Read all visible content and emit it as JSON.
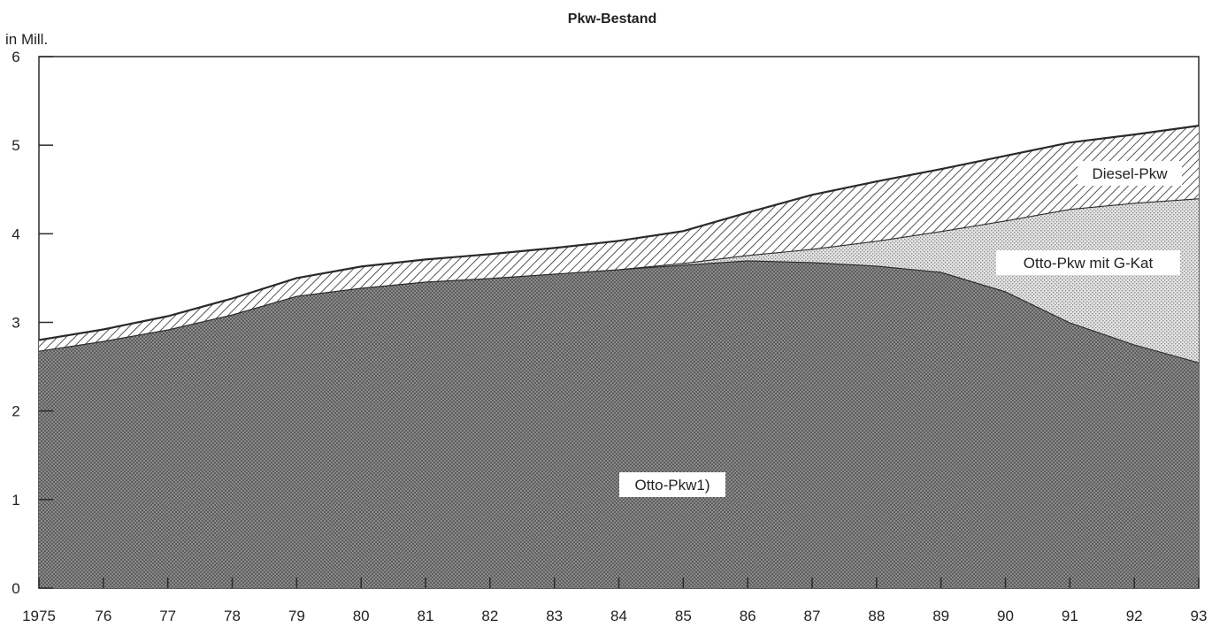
{
  "chart_data": {
    "type": "area",
    "stacked": true,
    "title": "Pkw-Bestand",
    "ylabel": "in Mill.",
    "xlabel": "",
    "ylim": [
      0,
      6
    ],
    "yticks": [
      0,
      1,
      2,
      3,
      4,
      5,
      6
    ],
    "x": [
      "1975",
      "76",
      "77",
      "78",
      "79",
      "80",
      "81",
      "82",
      "83",
      "84",
      "85",
      "86",
      "87",
      "88",
      "89",
      "90",
      "91",
      "92",
      "93"
    ],
    "series": [
      {
        "name": "Otto-Pkw1)",
        "values": [
          2.68,
          2.79,
          2.92,
          3.09,
          3.3,
          3.39,
          3.46,
          3.5,
          3.55,
          3.6,
          3.65,
          3.7,
          3.68,
          3.64,
          3.57,
          3.35,
          3.0,
          2.75,
          2.55
        ]
      },
      {
        "name": "Otto-Pkw mit G-Kat",
        "values": [
          0,
          0,
          0,
          0,
          0,
          0,
          0,
          0,
          0,
          0,
          0.02,
          0.06,
          0.15,
          0.28,
          0.46,
          0.8,
          1.28,
          1.6,
          1.85
        ]
      },
      {
        "name": "Diesel-Pkw",
        "values": [
          0.12,
          0.13,
          0.15,
          0.18,
          0.2,
          0.24,
          0.25,
          0.27,
          0.29,
          0.32,
          0.36,
          0.48,
          0.61,
          0.67,
          0.7,
          0.73,
          0.75,
          0.77,
          0.82
        ]
      }
    ],
    "grid": false,
    "legend": "inline labels"
  },
  "colors": {
    "otto": "#7c7c7c",
    "gkat": "#d4d4d4",
    "diesel": "#ffffff",
    "ink": "#2a2a2a"
  }
}
